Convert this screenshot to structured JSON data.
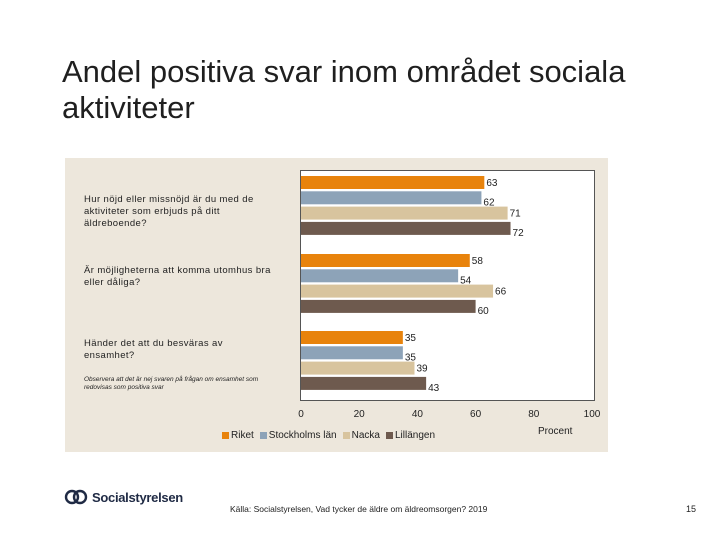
{
  "title": "Andel positiva svar inom området sociala aktiviteter",
  "questions": [
    {
      "label": "Hur nöjd eller missnöjd är du med de aktiviteter som erbjuds på ditt äldreboende?"
    },
    {
      "label": "Är möjligheterna att komma utomhus bra eller dåliga?"
    },
    {
      "label": "Händer det att du besväras av ensamhet?"
    }
  ],
  "note": "Observera att det är nej svaren på frågan om ensamhet som redovisas som positiva svar",
  "chart_data": {
    "type": "bar",
    "orientation": "horizontal",
    "categories": [
      "Hur nöjd eller missnöjd är du med de aktiviteter som erbjuds på ditt äldreboende?",
      "Är möjligheterna att komma utomhus bra eller dåliga?",
      "Händer det att du besväras av ensamhet?"
    ],
    "series": [
      {
        "name": "Riket",
        "color": "#e8830c",
        "values": [
          63,
          58,
          35
        ]
      },
      {
        "name": "Stockholms län",
        "color": "#8da3b8",
        "values": [
          62,
          54,
          35
        ]
      },
      {
        "name": "Nacka",
        "color": "#d8c49e",
        "values": [
          71,
          66,
          39
        ]
      },
      {
        "name": "Lillängen",
        "color": "#6e5a4e",
        "values": [
          72,
          60,
          43
        ]
      }
    ],
    "x_ticks": [
      0,
      20,
      40,
      60,
      80,
      100
    ],
    "xlim": [
      0,
      100
    ],
    "xlabel": "Procent",
    "legend_position": "bottom"
  },
  "footer": {
    "logo_text": "Socialstyrelsen",
    "source": "Källa: Socialstyrelsen, Vad tycker de äldre om äldreomsorgen? 2019",
    "page_number": "15"
  }
}
